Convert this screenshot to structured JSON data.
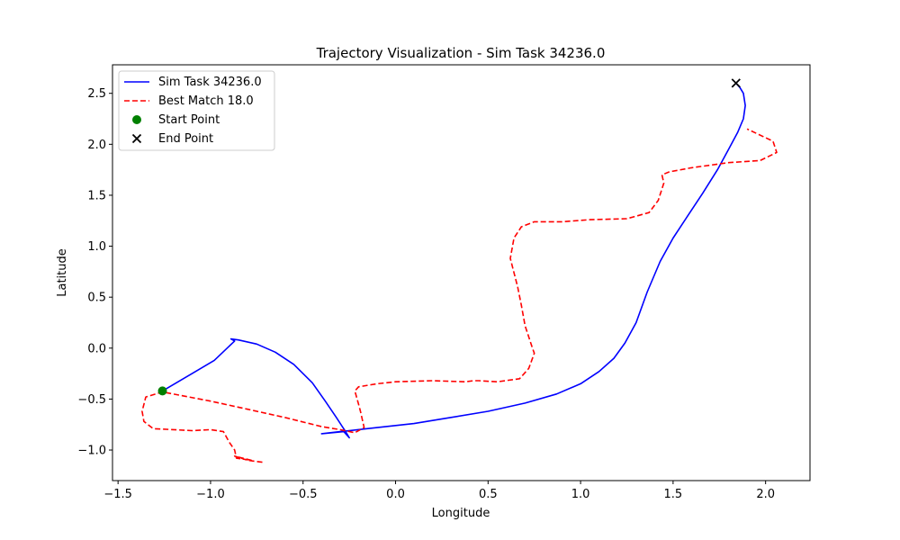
{
  "chart_data": {
    "type": "line",
    "title": "Trajectory Visualization - Sim Task 34236.0",
    "xlabel": "Longitude",
    "ylabel": "Latitude",
    "xlim": [
      -1.53,
      2.24
    ],
    "ylim": [
      -1.3,
      2.78
    ],
    "xticks": [
      -1.5,
      -1.0,
      -0.5,
      0.0,
      0.5,
      1.0,
      1.5,
      2.0
    ],
    "xtick_labels": [
      "−1.5",
      "−1.0",
      "−0.5",
      "0.0",
      "0.5",
      "1.0",
      "1.5",
      "2.0"
    ],
    "yticks": [
      -1.0,
      -0.5,
      0.0,
      0.5,
      1.0,
      1.5,
      2.0,
      2.5
    ],
    "ytick_labels": [
      "−1.0",
      "−0.5",
      "0.0",
      "0.5",
      "1.0",
      "1.5",
      "2.0",
      "2.5"
    ],
    "grid": false,
    "legend_position": "top-left",
    "series": [
      {
        "name": "Sim Task 34236.0",
        "style": "solid",
        "color": "#0000ff",
        "x": [
          -1.26,
          -1.1,
          -0.98,
          -0.87,
          -0.89,
          -0.85,
          -0.75,
          -0.65,
          -0.55,
          -0.45,
          -0.38,
          -0.32,
          -0.27,
          -0.25,
          -0.28,
          -0.4,
          -0.3,
          -0.1,
          0.1,
          0.3,
          0.5,
          0.7,
          0.87,
          1.0,
          1.1,
          1.18,
          1.24,
          1.3,
          1.36,
          1.43,
          1.5,
          1.58,
          1.66,
          1.74,
          1.8,
          1.85,
          1.88,
          1.89,
          1.88,
          1.86,
          1.84
        ],
        "y": [
          -0.42,
          -0.25,
          -0.12,
          0.07,
          0.09,
          0.08,
          0.04,
          -0.04,
          -0.16,
          -0.34,
          -0.52,
          -0.68,
          -0.82,
          -0.88,
          -0.82,
          -0.84,
          -0.82,
          -0.78,
          -0.74,
          -0.68,
          -0.62,
          -0.54,
          -0.45,
          -0.35,
          -0.23,
          -0.1,
          0.05,
          0.25,
          0.55,
          0.85,
          1.08,
          1.3,
          1.52,
          1.75,
          1.95,
          2.12,
          2.25,
          2.38,
          2.5,
          2.56,
          2.6
        ]
      },
      {
        "name": "Best Match 18.0",
        "style": "dashed",
        "color": "#ff0000",
        "x": [
          -0.72,
          -0.8,
          -0.87,
          -0.78,
          -0.86,
          -0.87,
          -0.9,
          -0.93,
          -1.0,
          -1.1,
          -1.2,
          -1.31,
          -1.36,
          -1.37,
          -1.35,
          -1.26,
          -1.0,
          -0.8,
          -0.6,
          -0.4,
          -0.3,
          -0.22,
          -0.17,
          -0.19,
          -0.2,
          -0.22,
          -0.2,
          -0.1,
          0.0,
          0.2,
          0.38,
          0.42,
          0.45,
          0.55,
          0.67,
          0.72,
          0.75,
          0.74,
          0.7,
          0.68,
          0.66,
          0.62,
          0.64,
          0.68,
          0.75,
          0.9,
          1.05,
          1.25,
          1.37,
          1.42,
          1.45,
          1.44,
          1.48,
          1.6,
          1.8,
          1.97,
          2.06,
          2.04,
          1.9
        ],
        "y": [
          -1.12,
          -1.1,
          -1.06,
          -1.1,
          -1.08,
          -1.0,
          -0.92,
          -0.82,
          -0.8,
          -0.81,
          -0.8,
          -0.79,
          -0.72,
          -0.62,
          -0.48,
          -0.43,
          -0.52,
          -0.6,
          -0.68,
          -0.77,
          -0.8,
          -0.83,
          -0.78,
          -0.62,
          -0.55,
          -0.42,
          -0.38,
          -0.35,
          -0.33,
          -0.32,
          -0.33,
          -0.32,
          -0.32,
          -0.33,
          -0.3,
          -0.2,
          -0.05,
          0.0,
          0.22,
          0.42,
          0.6,
          0.88,
          1.08,
          1.19,
          1.24,
          1.24,
          1.26,
          1.27,
          1.33,
          1.45,
          1.62,
          1.7,
          1.73,
          1.77,
          1.82,
          1.84,
          1.92,
          2.03,
          2.15
        ]
      }
    ],
    "markers": [
      {
        "name": "Start Point",
        "shape": "circle",
        "color": "#008000",
        "x": -1.26,
        "y": -0.42
      },
      {
        "name": "End Point",
        "shape": "x",
        "color": "#000000",
        "x": 1.84,
        "y": 2.6
      }
    ]
  }
}
